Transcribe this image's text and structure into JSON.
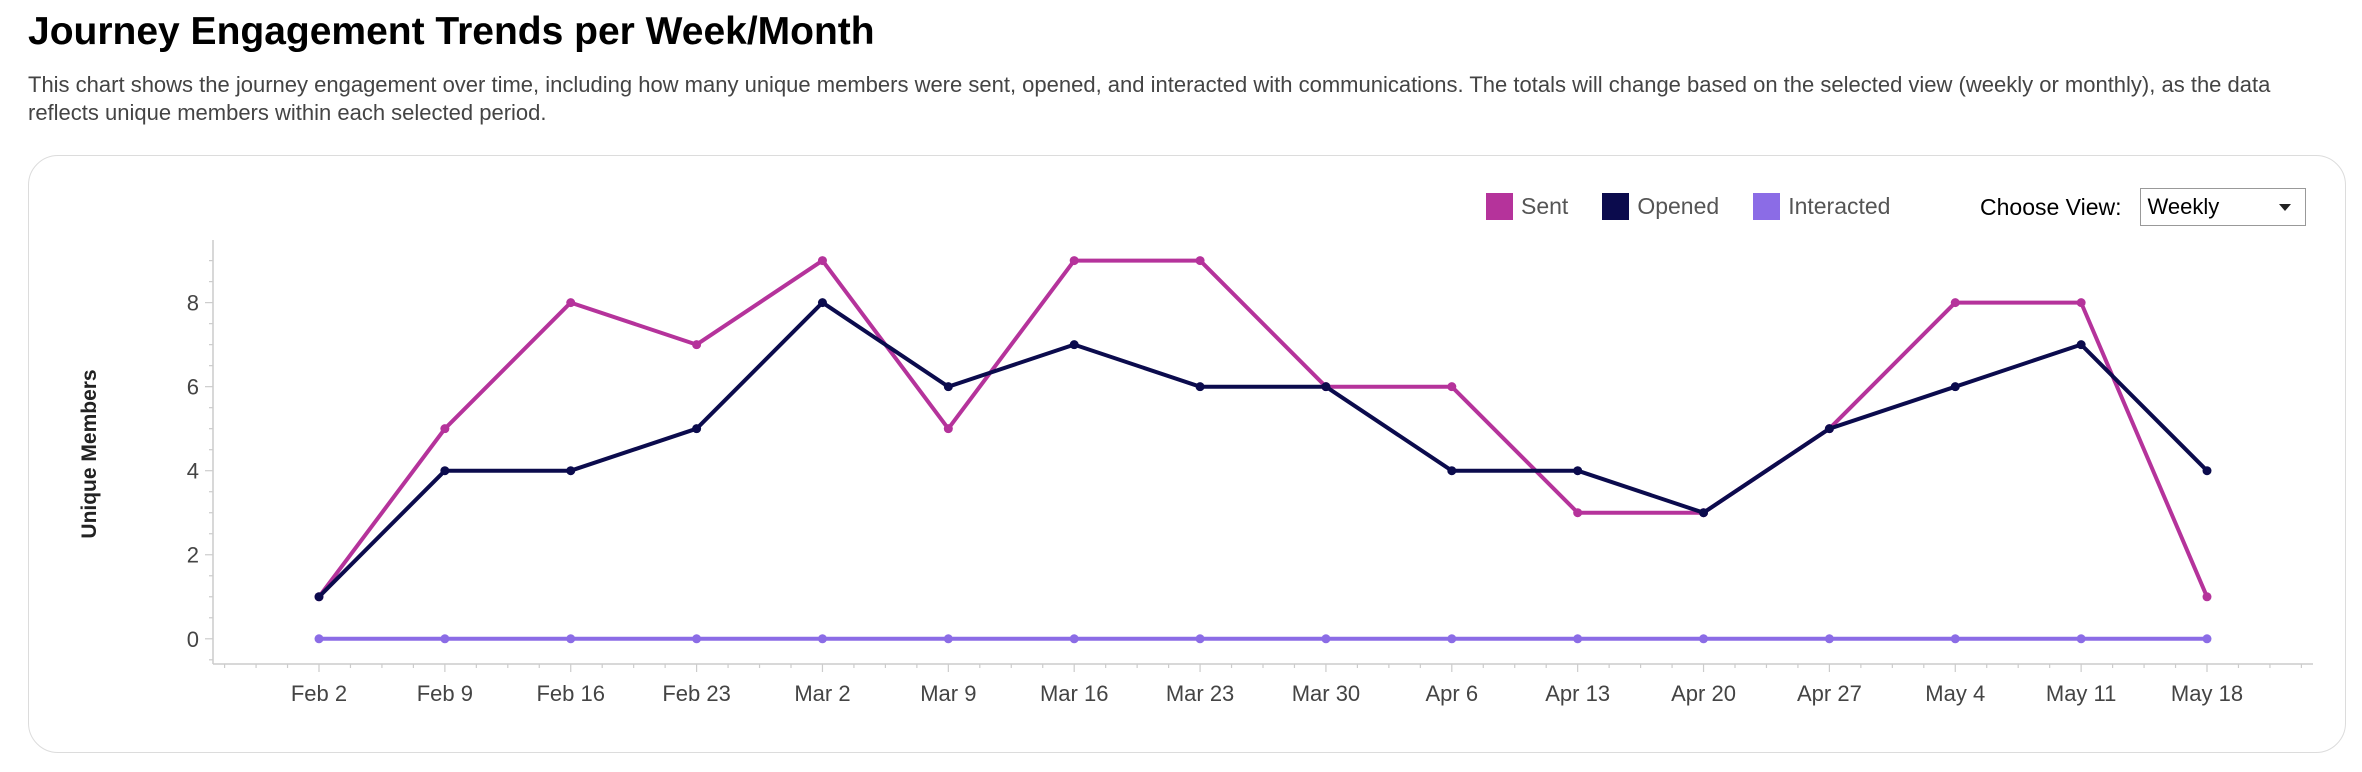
{
  "header": {
    "title": "Journey Engagement Trends per Week/Month",
    "description": "This chart shows the journey engagement over time, including how many unique members were sent, opened, and interacted with communications. The totals will change based on the selected view (weekly or monthly), as the data reflects unique members within each selected period."
  },
  "legend": [
    {
      "label": "Sent",
      "color": "#B5339B"
    },
    {
      "label": "Opened",
      "color": "#0B0B4D"
    },
    {
      "label": "Interacted",
      "color": "#8B6CE6"
    }
  ],
  "view": {
    "label": "Choose View:",
    "selected": "Weekly"
  },
  "chart_data": {
    "type": "line",
    "title": "",
    "xlabel": "",
    "ylabel": "Unique Members",
    "categories": [
      "Feb 2",
      "Feb 9",
      "Feb 16",
      "Feb 23",
      "Mar 2",
      "Mar 9",
      "Mar 16",
      "Mar 23",
      "Mar 30",
      "Apr 6",
      "Apr 13",
      "Apr 20",
      "Apr 27",
      "May 4",
      "May 11",
      "May 18"
    ],
    "yticks": [
      0,
      2,
      4,
      6,
      8
    ],
    "ylim": [
      -0.6,
      9.3
    ],
    "grid": false,
    "series": [
      {
        "name": "Sent",
        "color": "#B5339B",
        "values": [
          1,
          5,
          8,
          7,
          9,
          5,
          9,
          9,
          6,
          6,
          3,
          3,
          5,
          8,
          8,
          1
        ]
      },
      {
        "name": "Opened",
        "color": "#0B0B4D",
        "values": [
          1,
          4,
          4,
          5,
          8,
          6,
          7,
          6,
          6,
          4,
          4,
          3,
          5,
          6,
          7,
          4
        ]
      },
      {
        "name": "Interacted",
        "color": "#8B6CE6",
        "values": [
          0,
          0,
          0,
          0,
          0,
          0,
          0,
          0,
          0,
          0,
          0,
          0,
          0,
          0,
          0,
          0
        ]
      }
    ]
  }
}
